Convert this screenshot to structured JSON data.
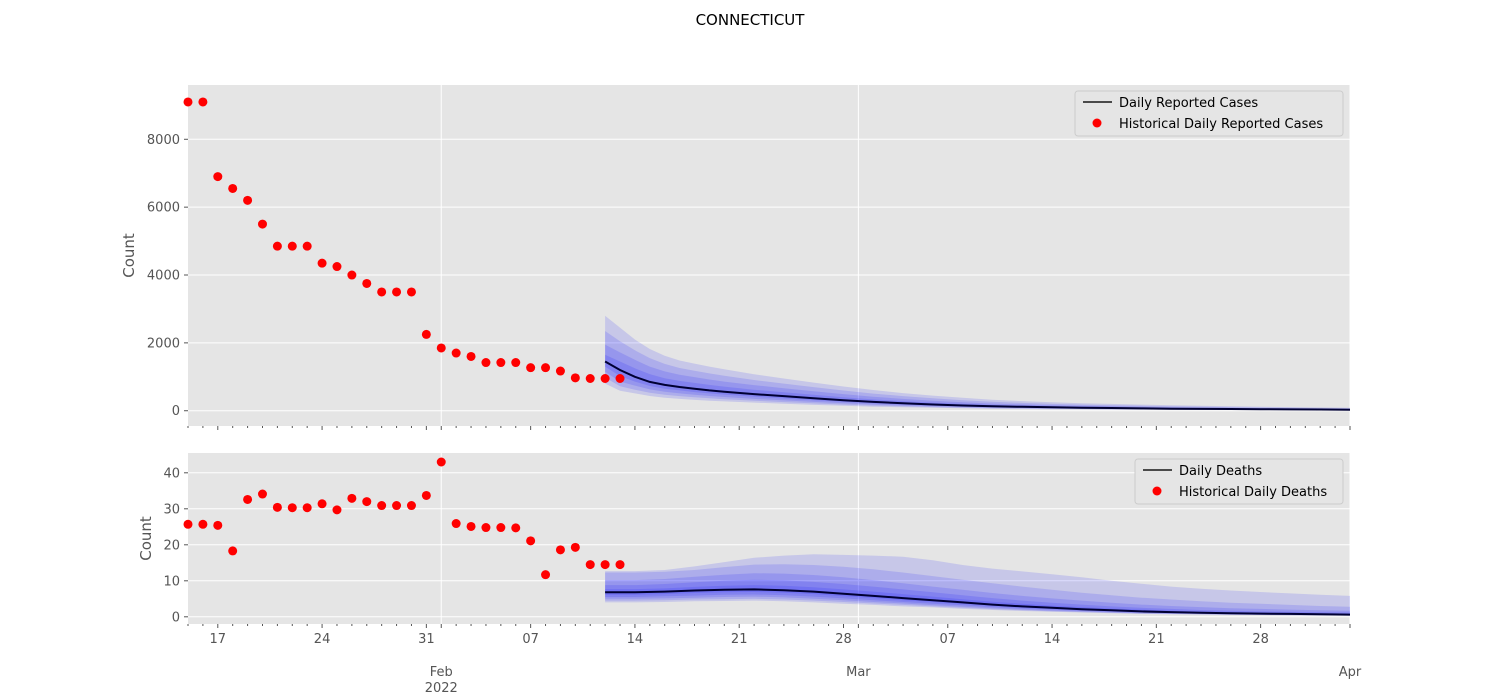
{
  "figure": {
    "suptitle": "CONNECTICUT",
    "x_month_labels": [
      "Feb",
      "Mar",
      "Apr"
    ],
    "x_year_label": "2022",
    "x_day_tick_labels": [
      "17",
      "24",
      "31",
      "07",
      "14",
      "21",
      "28",
      "07",
      "14",
      "21",
      "28"
    ]
  },
  "colors": {
    "panel_bg": "#e5e5e5",
    "grid": "#ffffff",
    "historical": "#ff0000",
    "median": "#000033",
    "band": "#0000ff"
  },
  "chart_data": [
    {
      "type": "scatter",
      "panel": "Daily Reported Cases",
      "ylabel": "Count",
      "y_ticks": [
        0,
        2000,
        4000,
        6000,
        8000
      ],
      "ylim": [
        -450,
        9600
      ],
      "xlim_day": [
        0,
        78
      ],
      "x_day_reference": "day 0 = the first date on the axis; Feb 1 = day 17, Mar 1 = day 45, Apr 1 = day 78",
      "legend": {
        "position": "top-right",
        "entries": [
          "Daily Reported Cases",
          "Historical Daily Reported Cases"
        ]
      },
      "historical": {
        "name": "Historical Daily Reported Cases",
        "x": [
          0,
          1,
          2,
          3,
          4,
          5,
          6,
          7,
          8,
          9,
          10,
          11,
          12,
          13,
          14,
          15,
          16,
          17,
          18,
          19,
          20,
          21,
          22,
          23,
          24,
          25,
          26,
          27,
          28,
          29
        ],
        "y": [
          9100,
          9100,
          6900,
          6550,
          6200,
          5500,
          4850,
          4850,
          4850,
          4350,
          4250,
          4000,
          3750,
          3500,
          3500,
          3500,
          2250,
          1850,
          1700,
          1600,
          1420,
          1420,
          1420,
          1270,
          1270,
          1170,
          970,
          950,
          950,
          950
        ]
      },
      "forecast": {
        "name": "Daily Reported Cases",
        "x": [
          28,
          29,
          30,
          31,
          32,
          33,
          34,
          35,
          36,
          38,
          40,
          42,
          44,
          46,
          48,
          50,
          52,
          54,
          56,
          58,
          60,
          62,
          64,
          66,
          68,
          70,
          72,
          74,
          76,
          78
        ],
        "median": [
          1450,
          1200,
          1000,
          850,
          760,
          700,
          650,
          600,
          560,
          490,
          430,
          370,
          310,
          260,
          220,
          185,
          155,
          130,
          115,
          100,
          90,
          80,
          70,
          60,
          55,
          50,
          45,
          40,
          35,
          30
        ],
        "bands": [
          {
            "lower": [
              1300,
              1020,
              860,
              730,
              650,
              600,
              550,
              510,
              475,
              410,
              360,
              310,
              260,
              220,
              185,
              155,
              130,
              110,
              97,
              85,
              76,
              68,
              60,
              52,
              47,
              43,
              39,
              35,
              31,
              27
            ],
            "upper": [
              1650,
              1450,
              1250,
              1080,
              960,
              880,
              820,
              760,
              710,
              620,
              545,
              470,
              400,
              335,
              285,
              240,
              200,
              170,
              150,
              130,
              117,
              105,
              93,
              82,
              74,
              67,
              60,
              54,
              48,
              42
            ]
          },
          {
            "lower": [
              1150,
              860,
              740,
              630,
              560,
              510,
              470,
              435,
              405,
              350,
              305,
              260,
              220,
              185,
              155,
              130,
              110,
              92,
              81,
              71,
              63,
              56,
              50,
              43,
              39,
              35,
              32,
              29,
              26,
              23
            ],
            "upper": [
              1950,
              1720,
              1500,
              1300,
              1160,
              1060,
              990,
              920,
              860,
              755,
              665,
              575,
              490,
              415,
              350,
              295,
              250,
              210,
              185,
              162,
              145,
              130,
              116,
              103,
              93,
              84,
              76,
              68,
              61,
              54
            ]
          },
          {
            "lower": [
              980,
              720,
              620,
              530,
              470,
              430,
              395,
              365,
              340,
              295,
              255,
              215,
              180,
              150,
              127,
              107,
              90,
              76,
              66,
              58,
              51,
              45,
              40,
              35,
              31,
              28,
              26,
              23,
              21,
              19
            ],
            "upper": [
              2350,
              2050,
              1780,
              1550,
              1380,
              1260,
              1180,
              1100,
              1030,
              905,
              800,
              695,
              595,
              505,
              430,
              365,
              310,
              262,
              230,
              202,
              180,
              162,
              145,
              129,
              117,
              106,
              96,
              86,
              77,
              68
            ]
          },
          {
            "lower": [
              800,
              590,
              510,
              435,
              385,
              350,
              320,
              295,
              275,
              240,
              205,
              172,
              144,
              120,
              101,
              85,
              72,
              61,
              53,
              46,
              41,
              36,
              32,
              28,
              25,
              23,
              21,
              19,
              17,
              15
            ],
            "upper": [
              2800,
              2450,
              2100,
              1820,
              1620,
              1480,
              1390,
              1300,
              1220,
              1075,
              950,
              830,
              715,
              610,
              520,
              445,
              380,
              322,
              283,
              250,
              222,
              200,
              180,
              160,
              145,
              132,
              120,
              108,
              97,
              86
            ]
          }
        ]
      }
    },
    {
      "type": "scatter",
      "panel": "Daily Deaths",
      "ylabel": "Count",
      "y_ticks": [
        0,
        10,
        20,
        30,
        40
      ],
      "ylim": [
        -2,
        45.5
      ],
      "xlim_day": [
        0,
        78
      ],
      "x_day_reference": "day 0 = the first date on the axis; Feb 1 = day 17, Mar 1 = day 45, Apr 1 = day 78",
      "legend": {
        "position": "top-right",
        "entries": [
          "Daily Deaths",
          "Historical Daily Deaths"
        ]
      },
      "historical": {
        "name": "Historical Daily Deaths",
        "x": [
          0,
          1,
          2,
          3,
          4,
          5,
          6,
          7,
          8,
          9,
          10,
          11,
          12,
          13,
          14,
          15,
          16,
          17,
          18,
          19,
          20,
          21,
          22,
          23,
          24,
          25,
          26,
          27,
          28,
          29
        ],
        "y": [
          25.7,
          25.7,
          25.4,
          18.3,
          32.6,
          34.1,
          30.4,
          30.3,
          30.3,
          31.4,
          29.7,
          32.9,
          32.0,
          30.9,
          30.9,
          30.9,
          33.7,
          43.0,
          25.9,
          25.1,
          24.8,
          24.8,
          24.7,
          21.1,
          11.7,
          18.6,
          19.3,
          14.5,
          14.5,
          14.5
        ]
      },
      "forecast": {
        "name": "Daily Deaths",
        "x": [
          28,
          30,
          32,
          34,
          36,
          38,
          40,
          42,
          44,
          46,
          48,
          50,
          52,
          54,
          56,
          58,
          60,
          62,
          64,
          66,
          68,
          70,
          72,
          74,
          76,
          78
        ],
        "median": [
          6.8,
          6.8,
          7.0,
          7.3,
          7.5,
          7.6,
          7.4,
          7.0,
          6.4,
          5.8,
          5.2,
          4.6,
          4.0,
          3.4,
          2.9,
          2.5,
          2.1,
          1.8,
          1.5,
          1.3,
          1.1,
          1.0,
          0.9,
          0.8,
          0.7,
          0.6
        ],
        "bands": [
          {
            "lower": [
              6.1,
              6.1,
              6.3,
              6.6,
              6.8,
              6.9,
              6.7,
              6.3,
              5.7,
              5.2,
              4.6,
              4.1,
              3.6,
              3.1,
              2.6,
              2.2,
              1.9,
              1.6,
              1.3,
              1.1,
              1.0,
              0.9,
              0.8,
              0.7,
              0.6,
              0.5
            ],
            "upper": [
              7.7,
              7.7,
              7.9,
              8.3,
              8.6,
              8.8,
              8.6,
              8.2,
              7.6,
              7.0,
              6.3,
              5.6,
              4.9,
              4.2,
              3.6,
              3.1,
              2.7,
              2.3,
              2.0,
              1.7,
              1.5,
              1.3,
              1.2,
              1.1,
              1.0,
              0.9
            ]
          },
          {
            "lower": [
              5.5,
              5.5,
              5.7,
              5.9,
              6.1,
              6.2,
              6.0,
              5.6,
              5.1,
              4.6,
              4.1,
              3.6,
              3.2,
              2.7,
              2.3,
              2.0,
              1.7,
              1.4,
              1.2,
              1.0,
              0.9,
              0.8,
              0.7,
              0.6,
              0.5,
              0.5
            ],
            "upper": [
              8.8,
              8.8,
              9.1,
              9.6,
              10.0,
              10.3,
              10.1,
              9.7,
              9.1,
              8.4,
              7.6,
              6.8,
              6.0,
              5.2,
              4.5,
              3.9,
              3.4,
              2.9,
              2.5,
              2.2,
              1.9,
              1.7,
              1.5,
              1.4,
              1.3,
              1.2
            ]
          },
          {
            "lower": [
              5.0,
              5.0,
              5.1,
              5.3,
              5.5,
              5.6,
              5.4,
              5.0,
              4.6,
              4.1,
              3.7,
              3.2,
              2.8,
              2.4,
              2.0,
              1.7,
              1.5,
              1.2,
              1.0,
              0.9,
              0.8,
              0.7,
              0.6,
              0.5,
              0.5,
              0.4
            ],
            "upper": [
              10.2,
              10.2,
              10.5,
              11.1,
              11.7,
              12.1,
              12.0,
              11.6,
              11.0,
              10.2,
              9.3,
              8.4,
              7.5,
              6.6,
              5.8,
              5.1,
              4.5,
              3.9,
              3.4,
              3.0,
              2.7,
              2.4,
              2.2,
              2.0,
              1.8,
              1.7
            ]
          },
          {
            "lower": [
              4.5,
              4.5,
              4.6,
              4.8,
              4.9,
              5.0,
              4.8,
              4.5,
              4.1,
              3.7,
              3.3,
              2.9,
              2.5,
              2.1,
              1.8,
              1.5,
              1.3,
              1.1,
              0.9,
              0.8,
              0.7,
              0.6,
              0.5,
              0.5,
              0.4,
              0.4
            ],
            "upper": [
              12.3,
              12.3,
              12.5,
              13.0,
              13.8,
              14.5,
              14.6,
              14.4,
              13.9,
              13.2,
              12.3,
              11.3,
              10.3,
              9.3,
              8.4,
              7.5,
              6.7,
              6.0,
              5.3,
              4.8,
              4.3,
              3.9,
              3.6,
              3.3,
              3.0,
              2.8
            ]
          },
          {
            "lower": [
              4.0,
              4.0,
              4.1,
              4.3,
              4.4,
              4.5,
              4.3,
              4.0,
              3.6,
              3.3,
              2.9,
              2.6,
              2.2,
              1.9,
              1.6,
              1.4,
              1.2,
              1.0,
              0.8,
              0.7,
              0.6,
              0.5,
              0.5,
              0.4,
              0.4,
              0.3
            ],
            "upper": [
              12.7,
              12.7,
              13.0,
              14.0,
              15.2,
              16.4,
              17.0,
              17.4,
              17.2,
              17.0,
              16.7,
              15.7,
              14.4,
              13.4,
              12.6,
              11.8,
              11.0,
              10.0,
              9.2,
              8.4,
              7.8,
              7.3,
              6.9,
              6.5,
              6.1,
              5.8
            ]
          }
        ]
      }
    }
  ]
}
